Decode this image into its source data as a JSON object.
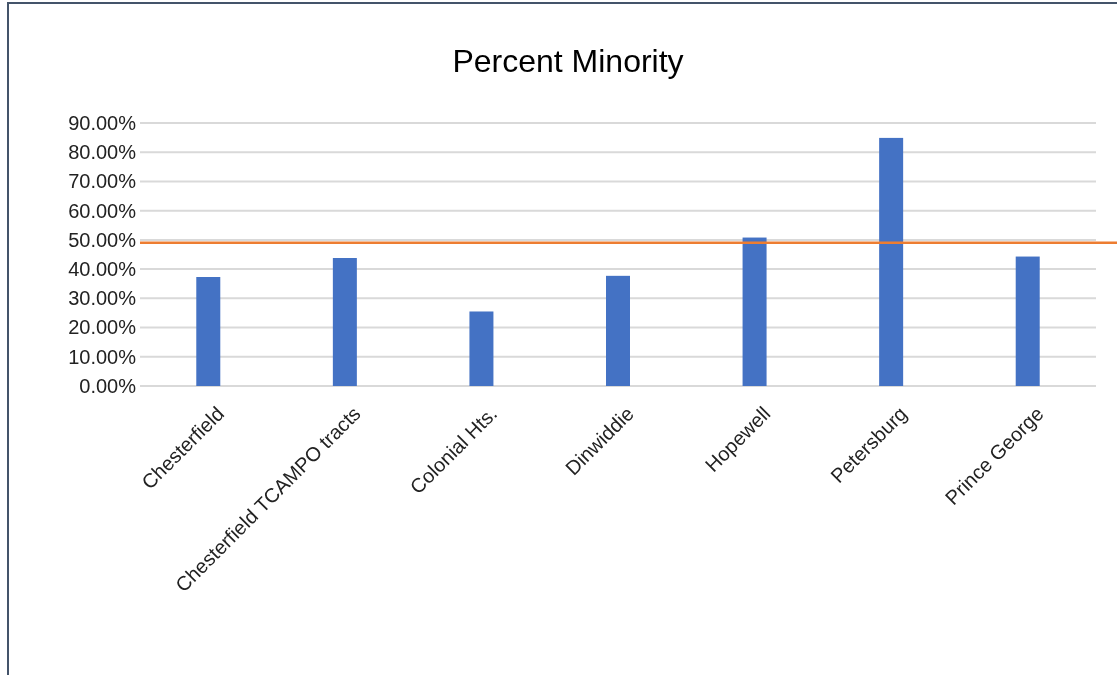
{
  "chart_data": {
    "type": "bar",
    "title": "Percent Minority",
    "categories": [
      "Chesterfield",
      "Chesterfield TCAMPO tracts",
      "Colonial Hts.",
      "Dinwiddie",
      "Hopewell",
      "Petersburg",
      "Prince George"
    ],
    "values": [
      37.3,
      43.8,
      25.5,
      37.7,
      50.8,
      84.9,
      44.3
    ],
    "color": "#4472c4",
    "ylim": [
      0,
      90
    ],
    "yticks": [
      {
        "value": 0,
        "label": "0.00%"
      },
      {
        "value": 10,
        "label": "10.00%"
      },
      {
        "value": 20,
        "label": "20.00%"
      },
      {
        "value": 30,
        "label": "30.00%"
      },
      {
        "value": 40,
        "label": "40.00%"
      },
      {
        "value": 50,
        "label": "50.00%"
      },
      {
        "value": 60,
        "label": "60.00%"
      },
      {
        "value": 70,
        "label": "70.00%"
      },
      {
        "value": 80,
        "label": "80.00%"
      },
      {
        "value": 90,
        "label": "90.00%"
      }
    ],
    "grid": "y",
    "ref_lines": [
      {
        "axis": "y",
        "value": 49,
        "color": "#ed7d31"
      }
    ]
  }
}
